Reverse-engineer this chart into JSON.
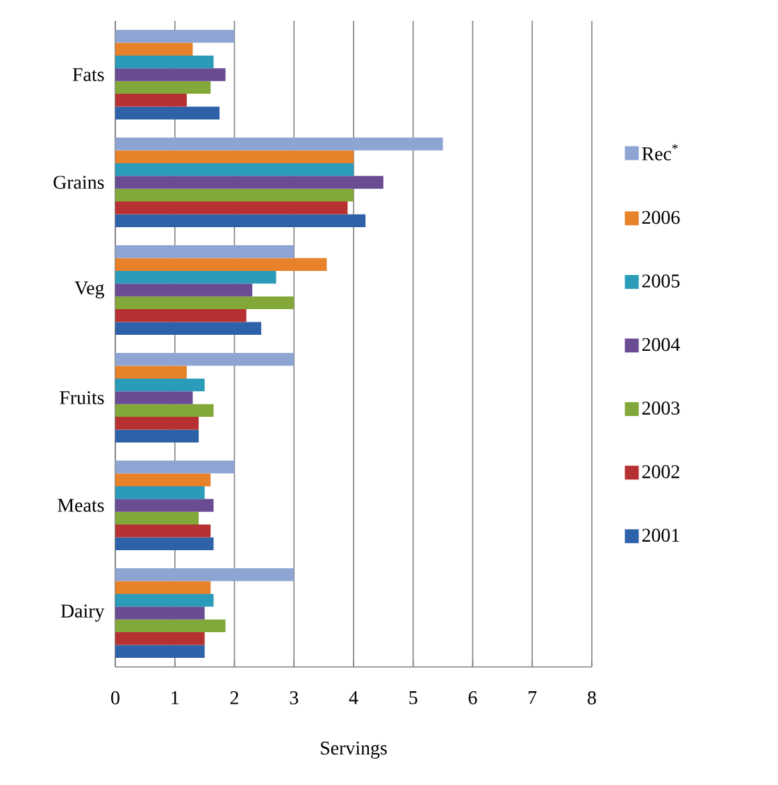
{
  "chart_data": {
    "type": "bar",
    "orientation": "horizontal",
    "xlabel": "Servings",
    "categories": [
      "Fats",
      "Grains",
      "Veg",
      "Fruits",
      "Meats",
      "Dairy"
    ],
    "series": [
      {
        "name": "Rec$^{*}$",
        "color": "#8ea5d4",
        "values": [
          2,
          5.5,
          3,
          3,
          2,
          3
        ]
      },
      {
        "name": "2006",
        "color": "#e8822a",
        "values": [
          1.3,
          4,
          3.55,
          1.2,
          1.6,
          1.6
        ]
      },
      {
        "name": "2005",
        "color": "#2a9bb8",
        "values": [
          1.65,
          4,
          2.7,
          1.5,
          1.5,
          1.65
        ]
      },
      {
        "name": "2004",
        "color": "#6a4c93",
        "values": [
          1.85,
          4.5,
          2.3,
          1.3,
          1.65,
          1.5
        ]
      },
      {
        "name": "2003",
        "color": "#82a83a",
        "values": [
          1.6,
          4,
          3,
          1.65,
          1.4,
          1.85
        ]
      },
      {
        "name": "2002",
        "color": "#b63232",
        "values": [
          1.2,
          3.9,
          2.2,
          1.4,
          1.6,
          1.5
        ]
      },
      {
        "name": "2001",
        "color": "#2e62a8",
        "values": [
          1.75,
          4.2,
          2.45,
          1.4,
          1.65,
          1.5
        ]
      }
    ],
    "xlim": [
      0,
      8
    ],
    "xticks": [
      0,
      1,
      2,
      3,
      4,
      5,
      6,
      7,
      8
    ],
    "grid": "x",
    "legend": "right"
  }
}
